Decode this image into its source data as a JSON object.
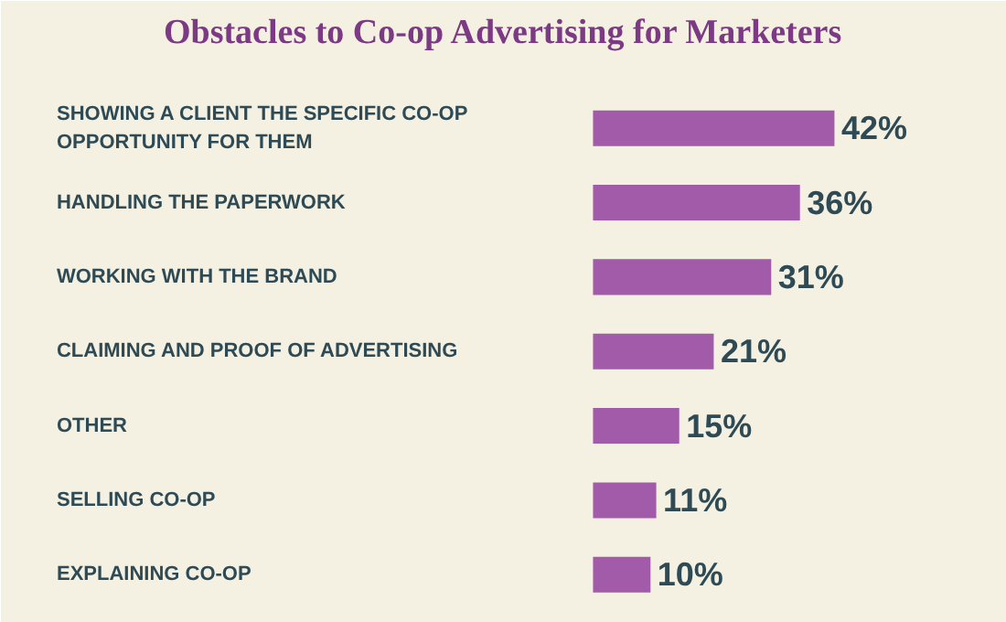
{
  "chart_data": {
    "type": "bar",
    "orientation": "horizontal",
    "title": "Obstacles to Co-op Advertising for Marketers",
    "categories": [
      "SHOWING A CLIENT THE SPECIFIC CO-OP OPPORTUNITY FOR THEM",
      "HANDLING THE PAPERWORK",
      "WORKING WITH THE BRAND",
      "CLAIMING AND PROOF OF ADVERTISING",
      "OTHER",
      "SELLING CO-OP",
      "EXPLAINING CO-OP"
    ],
    "values": [
      42,
      36,
      31,
      21,
      15,
      11,
      10
    ],
    "value_labels": [
      "42%",
      "36%",
      "31%",
      "21%",
      "15%",
      "11%",
      "10%"
    ],
    "color": "#a25ba9"
  }
}
